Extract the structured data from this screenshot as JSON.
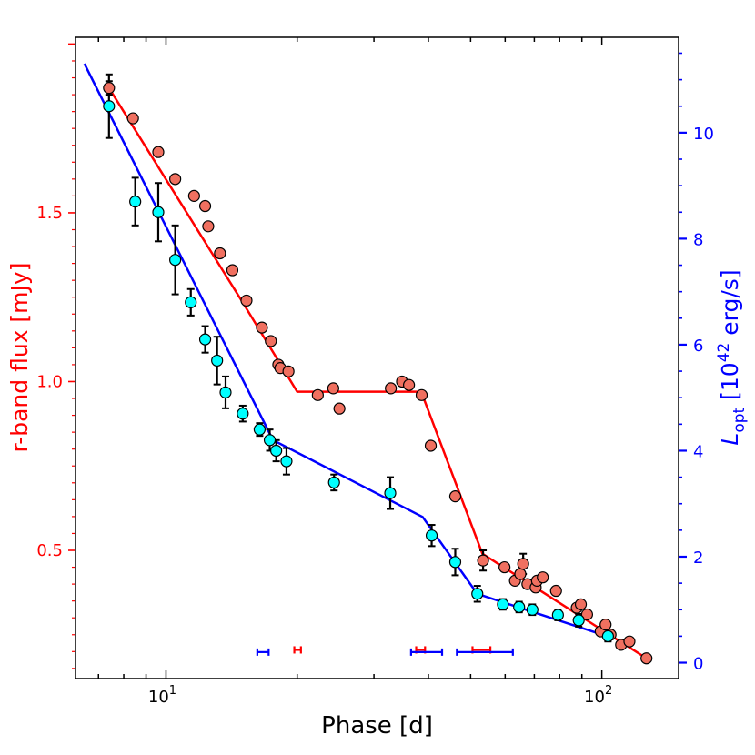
{
  "chart_data": {
    "type": "scatter",
    "xlabel": "Phase [d]",
    "xscale": "log",
    "xlim": [
      6.2,
      150
    ],
    "x_tick_labels": [
      {
        "value": 10,
        "label": "10",
        "sup": "1"
      },
      {
        "value": 100,
        "label": "10",
        "sup": "2"
      }
    ],
    "ylabel_left": "r-band flux [mJy]",
    "ylim_left": [
      0.12,
      2.02
    ],
    "y_ticks_left": [
      0.5,
      1.0,
      1.5
    ],
    "y_tick_labels_left": [
      "0.5",
      "1.0",
      "1.5"
    ],
    "ylabel_right": {
      "base": "L",
      "sub": "opt",
      "rest": " [10",
      "sup": "42",
      "end": " erg/s]"
    },
    "ylim_right": [
      -0.3,
      11.8
    ],
    "y_ticks_right": [
      0,
      2,
      4,
      6,
      8,
      10
    ],
    "y_tick_labels_right": [
      "0",
      "2",
      "4",
      "6",
      "8",
      "10"
    ],
    "grid": false,
    "colors": {
      "left_axis": "#ff0000",
      "right_axis": "#0000ff",
      "flux_line": "#ff0000",
      "flux_points": "#f07060",
      "lum_line": "#0000ff",
      "lum_points": "#00ffff",
      "errorbars": "#000000"
    },
    "series": [
      {
        "axis": "left",
        "kind": "points",
        "x": [
          7.4,
          8.4,
          9.6,
          10.5,
          11.6,
          12.3,
          12.5,
          13.3,
          14.2,
          15.3,
          16.6,
          17.4,
          18.1,
          18.3,
          19.1,
          22.3,
          24.2,
          25.0,
          32.8,
          34.8,
          36.1,
          38.6,
          40.5,
          46.1,
          53.4,
          59.8,
          63.2,
          65.0,
          66.0,
          67.5,
          70.5,
          71.0,
          73.2,
          78.5,
          87.6,
          89.5,
          92.5,
          99.4,
          102.0,
          104.7,
          110.7,
          115.7,
          126.6
        ],
        "y": [
          1.87,
          1.78,
          1.68,
          1.6,
          1.55,
          1.52,
          1.46,
          1.38,
          1.33,
          1.24,
          1.16,
          1.12,
          1.05,
          1.04,
          1.03,
          0.96,
          0.98,
          0.92,
          0.98,
          1.0,
          0.99,
          0.96,
          0.81,
          0.66,
          0.47,
          0.45,
          0.41,
          0.43,
          0.46,
          0.4,
          0.39,
          0.41,
          0.42,
          0.38,
          0.33,
          0.34,
          0.31,
          0.26,
          0.28,
          0.25,
          0.22,
          0.23,
          0.18
        ],
        "yerr": [
          0.02,
          0,
          0,
          0,
          0,
          0,
          0,
          0,
          0,
          0,
          0,
          0,
          0,
          0,
          0,
          0,
          0,
          0,
          0,
          0,
          0,
          0,
          0,
          0,
          0.03,
          0,
          0,
          0,
          0.03,
          0,
          0,
          0,
          0,
          0,
          0,
          0,
          0,
          0,
          0,
          0,
          0,
          0,
          0
        ]
      },
      {
        "axis": "left",
        "kind": "model",
        "x": [
          7.4,
          14.9,
          20.0,
          38.5,
          53.2,
          126.6
        ],
        "y": [
          1.87,
          1.24,
          0.97,
          0.97,
          0.49,
          0.18
        ]
      },
      {
        "axis": "right",
        "kind": "points",
        "x": [
          7.4,
          8.5,
          9.6,
          10.5,
          11.4,
          12.3,
          13.1,
          13.7,
          15.0,
          16.4,
          17.3,
          17.9,
          18.9,
          24.3,
          32.7,
          40.7,
          46.1,
          51.8,
          59.3,
          64.6,
          69.3,
          79.3,
          88.5,
          103.3
        ],
        "y": [
          10.5,
          8.7,
          8.5,
          7.6,
          6.8,
          6.1,
          5.7,
          5.1,
          4.7,
          4.4,
          4.2,
          4.0,
          3.8,
          3.4,
          3.2,
          2.4,
          1.9,
          1.3,
          1.1,
          1.05,
          1.0,
          0.9,
          0.8,
          0.5
        ],
        "yerr": [
          0.6,
          0.45,
          0.55,
          0.65,
          0.25,
          0.25,
          0.45,
          0.3,
          0.15,
          0.12,
          0.2,
          0.2,
          0.25,
          0.15,
          0.3,
          0.2,
          0.25,
          0.15,
          0.1,
          0.1,
          0.1,
          0.1,
          0.12,
          0.1
        ]
      },
      {
        "axis": "right",
        "kind": "model",
        "x": [
          6.5,
          17.6,
          38.8,
          51.8,
          102.8
        ],
        "y": [
          11.3,
          4.2,
          2.75,
          1.3,
          0.5
        ]
      }
    ],
    "horizontal_bars": [
      {
        "color": "#ff0000",
        "axis": "left",
        "x_low": 19.7,
        "x_high": 20.4,
        "y": 0.205
      },
      {
        "color": "#ff0000",
        "axis": "left",
        "x_low": 37.5,
        "x_high": 39.3,
        "y": 0.205
      },
      {
        "color": "#ff0000",
        "axis": "left",
        "x_low": 50.5,
        "x_high": 55.5,
        "y": 0.205
      },
      {
        "color": "#0000ff",
        "axis": "right",
        "x_low": 16.2,
        "x_high": 17.2,
        "y": 0.2
      },
      {
        "color": "#0000ff",
        "axis": "right",
        "x_low": 36.5,
        "x_high": 43.0,
        "y": 0.2
      },
      {
        "color": "#0000ff",
        "axis": "right",
        "x_low": 46.5,
        "x_high": 62.5,
        "y": 0.2
      }
    ]
  }
}
